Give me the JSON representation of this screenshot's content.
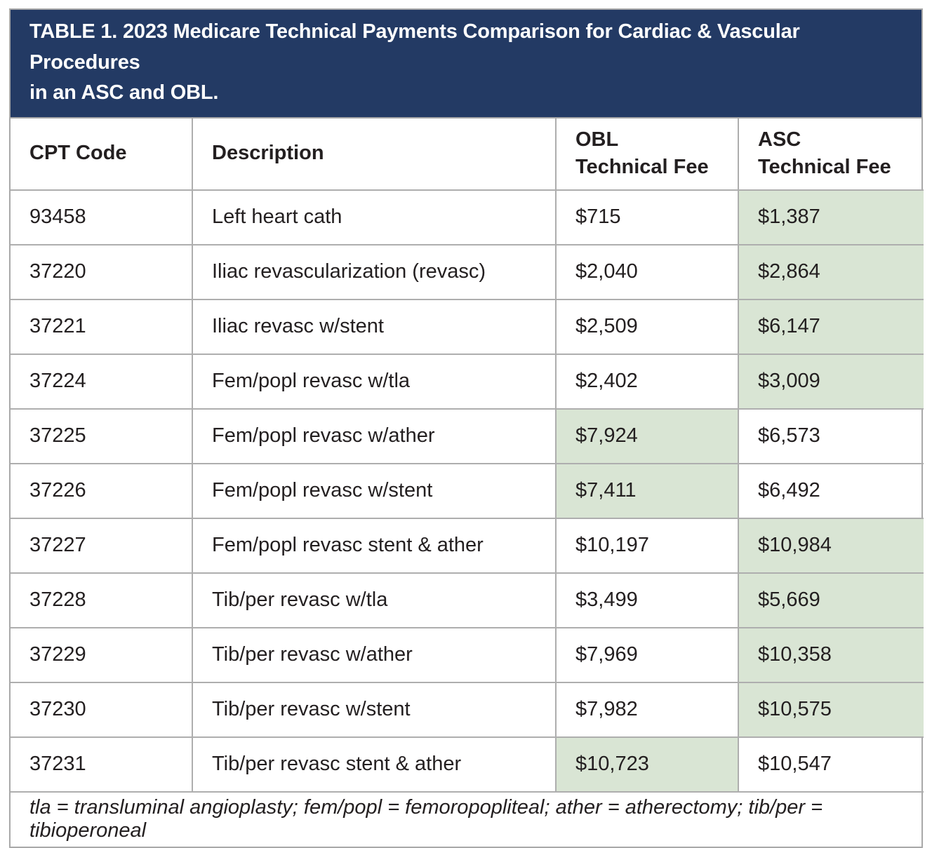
{
  "title": "TABLE 1. 2023 Medicare Technical Payments Comparison for Cardiac & Vascular Procedures\nin an ASC and OBL.",
  "table": {
    "columns": {
      "cpt": "CPT Code",
      "desc": "Description",
      "obl": "OBL\nTechnical Fee",
      "asc": "ASC\nTechnical Fee"
    },
    "rows": [
      {
        "cpt": "93458",
        "desc": "Left heart cath",
        "obl": "$715",
        "asc": "$1,387",
        "highlight": "asc"
      },
      {
        "cpt": "37220",
        "desc": "Iliac revascularization (revasc)",
        "obl": "$2,040",
        "asc": "$2,864",
        "highlight": "asc"
      },
      {
        "cpt": "37221",
        "desc": "Iliac revasc w/stent",
        "obl": "$2,509",
        "asc": "$6,147",
        "highlight": "asc"
      },
      {
        "cpt": "37224",
        "desc": "Fem/popl revasc w/tla",
        "obl": "$2,402",
        "asc": "$3,009",
        "highlight": "asc"
      },
      {
        "cpt": "37225",
        "desc": "Fem/popl revasc w/ather",
        "obl": "$7,924",
        "asc": "$6,573",
        "highlight": "obl"
      },
      {
        "cpt": "37226",
        "desc": "Fem/popl revasc w/stent",
        "obl": "$7,411",
        "asc": "$6,492",
        "highlight": "obl"
      },
      {
        "cpt": "37227",
        "desc": "Fem/popl revasc stent & ather",
        "obl": "$10,197",
        "asc": "$10,984",
        "highlight": "asc"
      },
      {
        "cpt": "37228",
        "desc": "Tib/per revasc w/tla",
        "obl": "$3,499",
        "asc": "$5,669",
        "highlight": "asc"
      },
      {
        "cpt": "37229",
        "desc": "Tib/per revasc w/ather",
        "obl": "$7,969",
        "asc": "$10,358",
        "highlight": "asc"
      },
      {
        "cpt": "37230",
        "desc": "Tib/per revasc w/stent",
        "obl": "$7,982",
        "asc": "$10,575",
        "highlight": "asc"
      },
      {
        "cpt": "37231",
        "desc": "Tib/per revasc stent & ather",
        "obl": "$10,723",
        "asc": "$10,547",
        "highlight": "obl"
      }
    ],
    "footnote": "tla = transluminal angioplasty; fem/popl = femoropopliteal; ather = atherectomy; tib/per = tibioperoneal"
  },
  "colors": {
    "header_bg": "#233a64",
    "header_text": "#ffffff",
    "highlight_green": "#d9e5d4",
    "border_gray": "#aeaeae",
    "body_text": "#231f20"
  }
}
